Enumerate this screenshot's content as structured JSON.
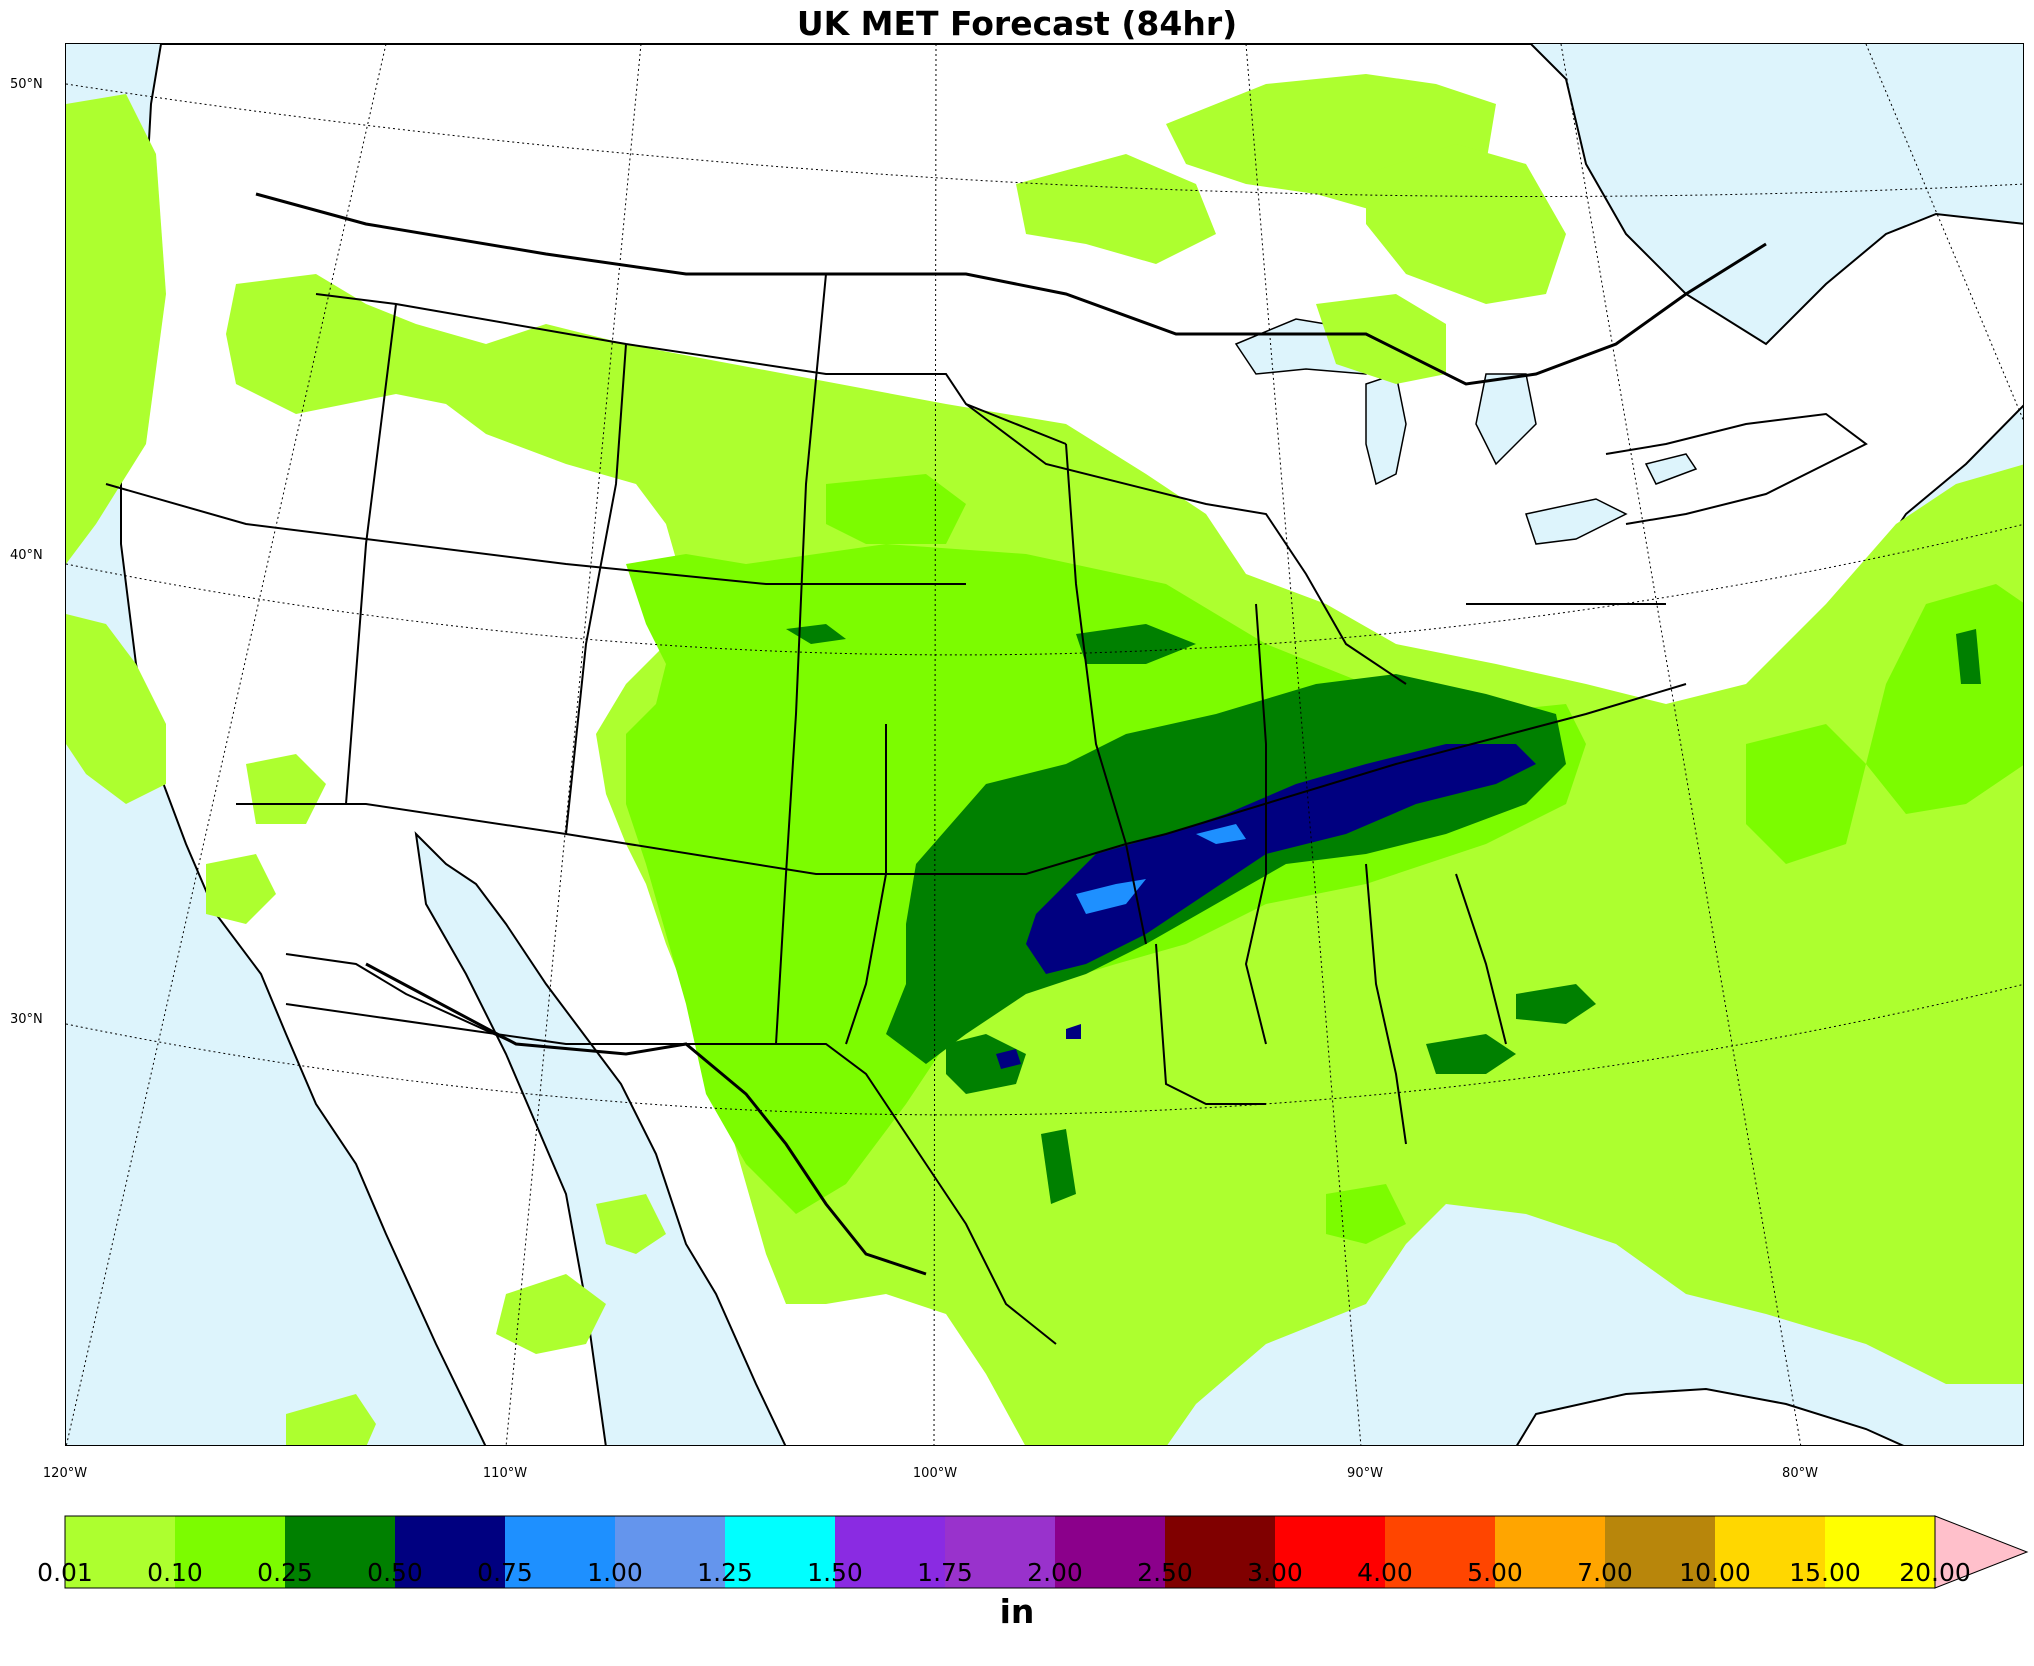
{
  "title": "UK MET Forecast (84hr)",
  "map": {
    "projection": "lambert-conformal",
    "region": "contiguous-united-states",
    "variable": "accumulated-precipitation",
    "colors": {
      "ocean": "#ddf4fc",
      "land": "#ffffff",
      "boundaries": "#000000"
    },
    "lat_labels": [
      "50°N",
      "40°N",
      "30°N"
    ],
    "lon_labels": [
      "120°W",
      "110°W",
      "100°W",
      "90°W",
      "80°W"
    ]
  },
  "colorbar": {
    "units": "in",
    "tick_labels": [
      "0.01",
      "0.10",
      "0.25",
      "0.50",
      "0.75",
      "1.00",
      "1.25",
      "1.50",
      "1.75",
      "2.00",
      "2.50",
      "3.00",
      "4.00",
      "5.00",
      "7.00",
      "10.00",
      "15.00",
      "20.00"
    ],
    "colors": [
      "#adff2f",
      "#7cfc00",
      "#008000",
      "#000080",
      "#1e90ff",
      "#6495ed",
      "#00ffff",
      "#8a2be2",
      "#9932cc",
      "#8b008b",
      "#800000",
      "#ff0000",
      "#ff4500",
      "#ffa500",
      "#b8860b",
      "#ffd700",
      "#ffff00",
      "#ffc0cb"
    ],
    "extend": "max"
  }
}
